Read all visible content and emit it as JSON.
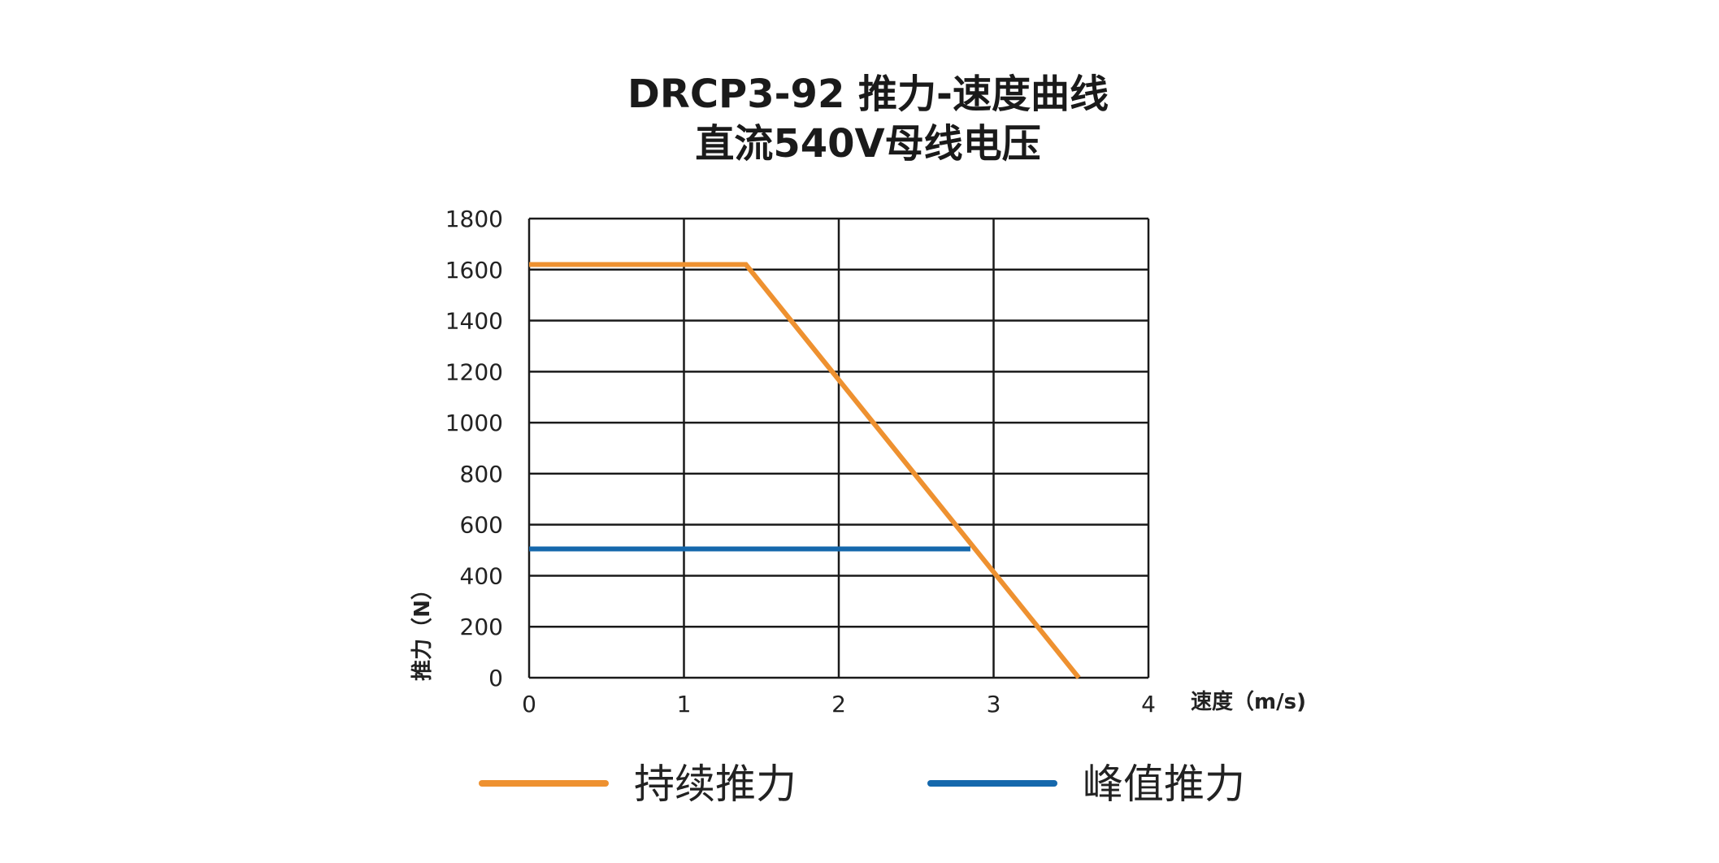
{
  "chart_data": {
    "type": "line",
    "title": "DRCP3-92 推力-速度曲线",
    "subtitle": "直流540V母线电压",
    "xlabel": "速度（m/s)",
    "ylabel": "推力（N）",
    "xlim": [
      0,
      4
    ],
    "ylim": [
      0,
      1800
    ],
    "xticks": [
      0,
      1,
      2,
      3,
      4
    ],
    "yticks": [
      0,
      200,
      400,
      600,
      800,
      1000,
      1200,
      1400,
      1600,
      1800
    ],
    "grid": true,
    "legend_position": "bottom",
    "series": [
      {
        "name": "持续推力",
        "color": "#ee9130",
        "x": [
          0,
          1.4,
          3.55
        ],
        "y": [
          1620,
          1620,
          0
        ]
      },
      {
        "name": "峰值推力",
        "color": "#1568ac",
        "x": [
          0,
          2.85
        ],
        "y": [
          505,
          505
        ]
      }
    ]
  }
}
